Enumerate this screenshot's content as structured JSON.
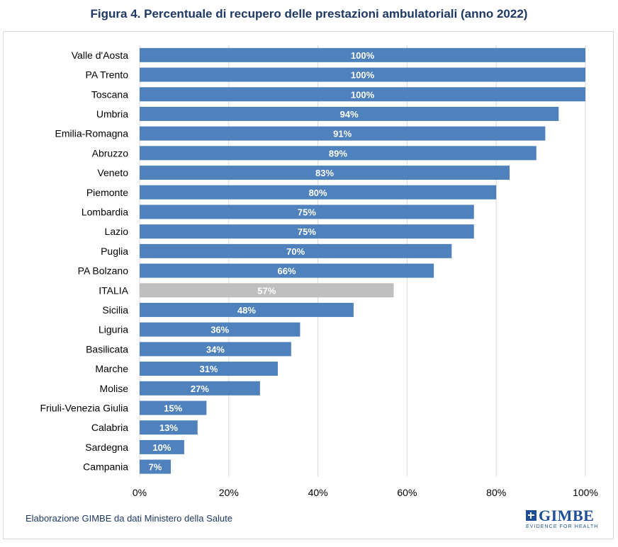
{
  "header": {
    "title": "Figura 4. Percentuale di recupero delle prestazioni ambulatoriali (anno 2022)"
  },
  "footer": {
    "source": "Elaborazione GIMBE da dati Ministero della Salute",
    "logo_word": "GIMBE",
    "logo_tagline": "EVIDENCE FOR HEALTH"
  },
  "colors": {
    "bar": "#4f81bd",
    "highlight_bar": "#bfbfbf",
    "grid": "#d9d9d9",
    "label": "#000000",
    "data_label": "#ffffff",
    "title": "#1f3864"
  },
  "chart_data": {
    "type": "bar",
    "orientation": "horizontal",
    "title": "Figura 4. Percentuale di recupero delle prestazioni ambulatoriali (anno 2022)",
    "xlabel": "",
    "ylabel": "",
    "xlim": [
      0,
      100
    ],
    "ticks": [
      0,
      20,
      40,
      60,
      80,
      100
    ],
    "tick_labels": [
      "0%",
      "20%",
      "40%",
      "60%",
      "80%",
      "100%"
    ],
    "grid": true,
    "highlight": "ITALIA",
    "categories": [
      "Valle d'Aosta",
      "PA Trento",
      "Toscana",
      "Umbria",
      "Emilia-Romagna",
      "Abruzzo",
      "Veneto",
      "Piemonte",
      "Lombardia",
      "Lazio",
      "Puglia",
      "PA Bolzano",
      "ITALIA",
      "Sicilia",
      "Liguria",
      "Basilicata",
      "Marche",
      "Molise",
      "Friuli-Venezia Giulia",
      "Calabria",
      "Sardegna",
      "Campania"
    ],
    "values": [
      100,
      100,
      100,
      94,
      91,
      89,
      83,
      80,
      75,
      75,
      70,
      66,
      57,
      48,
      36,
      34,
      31,
      27,
      15,
      13,
      10,
      7
    ],
    "data_labels": [
      "100%",
      "100%",
      "100%",
      "94%",
      "91%",
      "89%",
      "83%",
      "80%",
      "75%",
      "75%",
      "70%",
      "66%",
      "57%",
      "48%",
      "36%",
      "34%",
      "31%",
      "27%",
      "15%",
      "13%",
      "10%",
      "7%"
    ]
  }
}
